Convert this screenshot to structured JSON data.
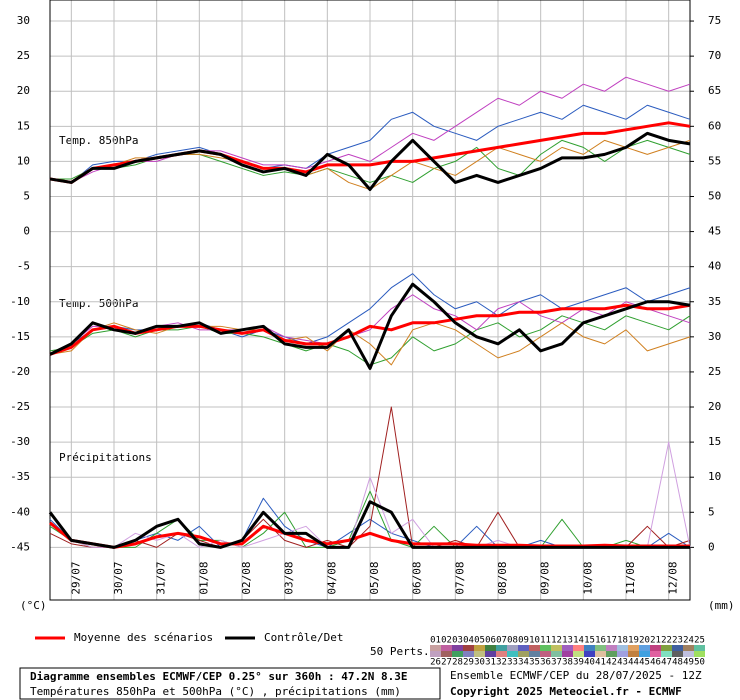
{
  "chart_data": {
    "type": "line",
    "x": [
      0,
      12,
      24,
      36,
      48,
      60,
      72,
      84,
      96,
      108,
      120,
      132,
      144,
      156,
      168,
      180,
      192,
      204,
      216,
      228,
      240,
      252,
      264,
      276,
      288,
      300,
      312,
      324,
      336,
      348,
      360
    ],
    "xlim": [
      0,
      360
    ],
    "xticks": [
      {
        "value": 12,
        "label": "29/07"
      },
      {
        "value": 36,
        "label": "30/07"
      },
      {
        "value": 60,
        "label": "31/07"
      },
      {
        "value": 84,
        "label": "01/08"
      },
      {
        "value": 108,
        "label": "02/08"
      },
      {
        "value": 132,
        "label": "03/08"
      },
      {
        "value": 156,
        "label": "04/08"
      },
      {
        "value": 180,
        "label": "05/08"
      },
      {
        "value": 204,
        "label": "06/08"
      },
      {
        "value": 228,
        "label": "07/08"
      },
      {
        "value": 252,
        "label": "08/08"
      },
      {
        "value": 276,
        "label": "09/08"
      },
      {
        "value": 300,
        "label": "10/08"
      },
      {
        "value": 324,
        "label": "11/08"
      },
      {
        "value": 348,
        "label": "12/08"
      }
    ],
    "ylim": [
      -52.5,
      33
    ],
    "yticks": [
      30,
      25,
      20,
      15,
      10,
      5,
      0,
      -5,
      -10,
      -15,
      -20,
      -25,
      -30,
      -35,
      -40,
      -45
    ],
    "y2lim": [
      -7.5,
      78
    ],
    "y2ticks": [
      75,
      70,
      65,
      60,
      55,
      50,
      45,
      40,
      35,
      30,
      25,
      20,
      15,
      10,
      5,
      0
    ],
    "ylabel": "(°C)",
    "y2label": "(mm)",
    "grid": true,
    "legend": [
      {
        "name": "Moyenne des scénarios",
        "color": "#ff0000"
      },
      {
        "name": "Contrôle/Det",
        "color": "#000000"
      }
    ],
    "panels": [
      {
        "label": "Temp. 850hPa",
        "mean": [
          7.5,
          7,
          9,
          9.5,
          10,
          10.5,
          11,
          11.5,
          11,
          10,
          9,
          9,
          8.5,
          9.5,
          9.5,
          9.5,
          10,
          10,
          10.5,
          11,
          11.5,
          12,
          12.5,
          13,
          13.5,
          14,
          14,
          14.5,
          15,
          15.5,
          15
        ],
        "control": [
          7.5,
          7,
          9,
          9,
          10,
          10.5,
          11,
          11.5,
          11,
          9.5,
          8.5,
          9,
          8,
          11,
          9.5,
          6,
          10,
          13,
          10,
          7,
          8,
          7,
          8,
          9,
          10.5,
          10.5,
          11,
          12,
          14,
          13,
          12.5
        ],
        "members": [
          {
            "color": "#2a5bbf",
            "values": [
              7.5,
              7,
              9.5,
              10,
              10,
              11,
              11.5,
              12,
              11,
              10,
              9,
              9.5,
              9,
              11,
              12,
              13,
              16,
              17,
              15,
              14,
              13,
              15,
              16,
              17,
              16,
              18,
              17,
              16,
              18,
              17,
              16
            ]
          },
          {
            "color": "#30a030",
            "values": [
              7.5,
              7.5,
              9,
              9,
              9.5,
              10.5,
              11,
              11,
              10,
              9,
              8,
              8.5,
              8,
              9,
              8,
              7,
              8,
              7,
              9,
              10,
              12,
              9,
              8,
              11,
              13,
              12,
              10,
              12,
              13,
              12,
              11
            ]
          },
          {
            "color": "#c040c0",
            "values": [
              7.5,
              7,
              8.5,
              9.5,
              10,
              10,
              11,
              11.5,
              11.5,
              10.5,
              9.5,
              9.5,
              9,
              10,
              11,
              10,
              12,
              14,
              13,
              15,
              17,
              19,
              18,
              20,
              19,
              21,
              20,
              22,
              21,
              20,
              21
            ]
          },
          {
            "color": "#d08020",
            "values": [
              7.5,
              7,
              9,
              9.5,
              10.5,
              10.5,
              11,
              11,
              10.5,
              10,
              9,
              9,
              8,
              9,
              7,
              6,
              8,
              10,
              9,
              8,
              10,
              12,
              11,
              10,
              12,
              11,
              13,
              12,
              11,
              12,
              13
            ]
          }
        ]
      },
      {
        "label": "Temp. 500hPa",
        "mean": [
          -17.5,
          -16.5,
          -14,
          -13.5,
          -14.5,
          -14,
          -13.5,
          -13.5,
          -14,
          -14.5,
          -14,
          -15.5,
          -16,
          -16,
          -15,
          -13.5,
          -14,
          -13,
          -13,
          -12.5,
          -12,
          -12,
          -11.5,
          -11.5,
          -11,
          -11,
          -11,
          -10.5,
          -11,
          -11,
          -10.5
        ],
        "control": [
          -17.5,
          -16,
          -13,
          -14,
          -14.5,
          -13.5,
          -13.5,
          -13,
          -14.5,
          -14,
          -13.5,
          -16,
          -16.5,
          -16.5,
          -14,
          -19.5,
          -12,
          -7.5,
          -10,
          -13,
          -15,
          -16,
          -14,
          -17,
          -16,
          -13,
          -12,
          -11,
          -10,
          -10,
          -10.5
        ],
        "members": [
          {
            "color": "#2a5bbf",
            "values": [
              -17.5,
              -16,
              -14,
              -13.5,
              -14,
              -14,
              -13.5,
              -13,
              -14,
              -15,
              -14,
              -15,
              -16,
              -15,
              -13,
              -11,
              -8,
              -6,
              -9,
              -11,
              -10,
              -12,
              -10,
              -9,
              -11,
              -10,
              -9,
              -8,
              -10,
              -9,
              -8
            ]
          },
          {
            "color": "#30a030",
            "values": [
              -17,
              -16.5,
              -14.5,
              -14,
              -15,
              -14,
              -14,
              -13.5,
              -14.5,
              -14.5,
              -15,
              -16,
              -17,
              -16,
              -17,
              -19,
              -18,
              -15,
              -17,
              -16,
              -14,
              -13,
              -15,
              -14,
              -12,
              -13,
              -14,
              -12,
              -13,
              -14,
              -12
            ]
          },
          {
            "color": "#c040c0",
            "values": [
              -17.5,
              -16,
              -13.5,
              -13.5,
              -14.5,
              -13.5,
              -13,
              -14,
              -14,
              -14,
              -13.5,
              -15,
              -15.5,
              -16,
              -15,
              -14,
              -11,
              -9,
              -11,
              -12,
              -14,
              -11,
              -10,
              -12,
              -13,
              -11,
              -12,
              -10,
              -11,
              -12,
              -13
            ]
          },
          {
            "color": "#d08020",
            "values": [
              -17.5,
              -17,
              -14,
              -13,
              -14,
              -14.5,
              -13.5,
              -13.5,
              -13.5,
              -14,
              -14,
              -15.5,
              -15,
              -17,
              -14,
              -16,
              -19,
              -14,
              -13,
              -14,
              -16,
              -18,
              -17,
              -15,
              -13,
              -15,
              -16,
              -14,
              -17,
              -16,
              -15
            ]
          }
        ]
      },
      {
        "label": "Précipitations",
        "axis": "y2",
        "mean": [
          3.5,
          1,
          0.5,
          0,
          0.5,
          1.5,
          2,
          1.5,
          0.5,
          0.5,
          3,
          2,
          1,
          0.5,
          1,
          2,
          1,
          0.5,
          0.5,
          0.5,
          0.3,
          0.3,
          0.3,
          0.2,
          0.2,
          0.2,
          0.3,
          0.2,
          0.2,
          0.2,
          0.2
        ],
        "control": [
          5,
          1,
          0.5,
          0,
          1,
          3,
          4,
          0.5,
          0,
          1,
          5,
          2,
          2,
          0,
          0,
          6.5,
          5,
          0,
          0,
          0,
          0,
          0,
          0,
          0,
          0,
          0,
          0,
          0,
          0,
          0,
          0
        ],
        "members": [
          {
            "color": "#2a5bbf",
            "values": [
              4,
              1,
              0.5,
              0,
              1,
              2,
              1,
              3,
              0,
              1,
              7,
              3,
              1,
              0,
              2,
              4,
              2,
              1,
              0,
              0,
              3,
              0,
              0,
              1,
              0,
              0,
              0,
              0,
              0,
              2,
              0
            ]
          },
          {
            "color": "#30a030",
            "values": [
              3,
              1,
              0,
              0,
              0,
              2,
              4,
              1,
              1,
              0,
              2,
              5,
              0,
              0,
              1,
              8,
              1,
              0,
              3,
              0,
              0,
              0,
              0,
              0,
              4,
              0,
              0,
              1,
              0,
              0,
              0
            ]
          },
          {
            "color": "#a02020",
            "values": [
              2,
              0.5,
              0,
              0,
              1,
              0,
              2,
              1,
              0,
              1,
              4,
              1,
              0,
              1,
              0,
              3,
              20,
              0,
              0,
              1,
              0,
              5,
              0,
              0,
              0,
              0,
              0,
              0,
              3,
              0,
              1
            ]
          },
          {
            "color": "#d0a0e0",
            "values": [
              5,
              1,
              0,
              0,
              2,
              1,
              2,
              0,
              1,
              0,
              1,
              2,
              3,
              0,
              0,
              10,
              2,
              4,
              0,
              0,
              0,
              1,
              0,
              0,
              0,
              0,
              0,
              0,
              0,
              15,
              0
            ]
          }
        ]
      }
    ],
    "members_legend": {
      "title": "50 Perts.",
      "labels": [
        "01",
        "02",
        "03",
        "04",
        "05",
        "06",
        "07",
        "08",
        "09",
        "10",
        "11",
        "12",
        "13",
        "14",
        "15",
        "16",
        "17",
        "18",
        "19",
        "20",
        "21",
        "22",
        "23",
        "24",
        "25",
        "26",
        "27",
        "28",
        "29",
        "30",
        "31",
        "32",
        "33",
        "34",
        "35",
        "36",
        "37",
        "38",
        "39",
        "40",
        "41",
        "42",
        "43",
        "44",
        "45",
        "46",
        "47",
        "48",
        "49",
        "50"
      ],
      "colors": [
        "#c8a0a0",
        "#c060a0",
        "#8040a0",
        "#a04040",
        "#c0a040",
        "#408040",
        "#40a0a0",
        "#a0a0c0",
        "#6060c0",
        "#c06060",
        "#60c060",
        "#c0c060",
        "#a060c0",
        "#ff8080",
        "#4080c0",
        "#80c080",
        "#c080c0",
        "#a0c0e0",
        "#e0a060",
        "#60a0e0",
        "#c04080",
        "#80a040",
        "#4060a0",
        "#a08060",
        "#60c0a0",
        "#c0a0c0",
        "#a06060",
        "#40a060",
        "#8080c0",
        "#c0c080",
        "#6040a0",
        "#e08080",
        "#40c0c0",
        "#a0a060",
        "#6080a0",
        "#c06080",
        "#80c0a0",
        "#a040a0",
        "#c0e080",
        "#4040c0",
        "#e0c0a0",
        "#60a060",
        "#a0a0e0",
        "#c08040",
        "#40a0e0",
        "#e060a0",
        "#80e0c0",
        "#606060",
        "#c0c0e0",
        "#a0e060"
      ]
    },
    "footer": {
      "title": "Diagramme ensembles ECMWF/CEP 0.25° sur 360h : 47.2N 8.3E",
      "subtitle": "Températures 850hPa et 500hPa (°C) , précipitations (mm)",
      "run": "Ensemble ECMWF/CEP du 28/07/2025 - 12Z",
      "copyright": "Copyright 2025 Meteociel.fr - ECMWF"
    }
  }
}
